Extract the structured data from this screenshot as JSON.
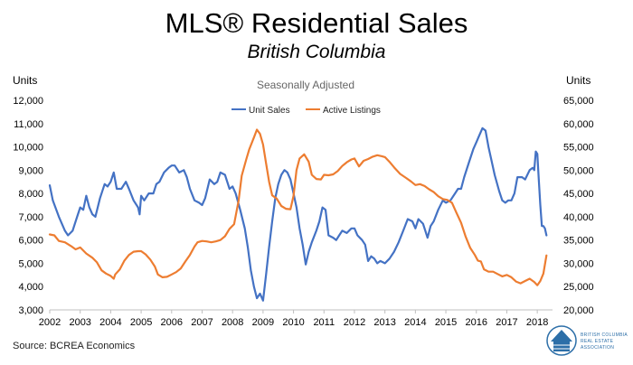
{
  "header": {
    "title": "MLS® Residential Sales",
    "subtitle": "British Columbia"
  },
  "footer": {
    "source": "Source: BCREA Economics"
  },
  "logo": {
    "line1": "BRITISH COLUMBIA",
    "line2": "REAL ESTATE",
    "line3": "ASSOCIATION",
    "color": "#2d6fa8"
  },
  "chart_data": {
    "type": "line",
    "annotation": "Seasonally Adjusted",
    "y_left": {
      "label": "Units",
      "range": [
        3000,
        12000
      ],
      "step": 1000
    },
    "y_right": {
      "label": "Units",
      "range": [
        20000,
        65000
      ],
      "step": 5000
    },
    "x_range": [
      2002,
      2018.5
    ],
    "x_ticks": [
      "2002",
      "2003",
      "2004",
      "2005",
      "2006",
      "2007",
      "2008",
      "2009",
      "2010",
      "2011",
      "2012",
      "2013",
      "2014",
      "2015",
      "2016",
      "2017",
      "2018"
    ],
    "grid": false,
    "legend": "top-center",
    "series": [
      {
        "name": "Unit Sales",
        "axis": "left",
        "color": "#4472c4",
        "points": [
          [
            2002.0,
            8350
          ],
          [
            2002.1,
            7700
          ],
          [
            2002.3,
            7000
          ],
          [
            2002.5,
            6400
          ],
          [
            2002.6,
            6200
          ],
          [
            2002.75,
            6400
          ],
          [
            2002.9,
            7000
          ],
          [
            2003.0,
            7400
          ],
          [
            2003.1,
            7300
          ],
          [
            2003.2,
            7900
          ],
          [
            2003.3,
            7400
          ],
          [
            2003.4,
            7100
          ],
          [
            2003.5,
            7000
          ],
          [
            2003.65,
            7800
          ],
          [
            2003.8,
            8400
          ],
          [
            2003.9,
            8300
          ],
          [
            2004.0,
            8500
          ],
          [
            2004.1,
            8900
          ],
          [
            2004.2,
            8200
          ],
          [
            2004.35,
            8200
          ],
          [
            2004.5,
            8500
          ],
          [
            2004.6,
            8200
          ],
          [
            2004.75,
            7700
          ],
          [
            2004.9,
            7400
          ],
          [
            2004.95,
            7100
          ],
          [
            2005.0,
            7900
          ],
          [
            2005.1,
            7700
          ],
          [
            2005.25,
            8000
          ],
          [
            2005.4,
            8000
          ],
          [
            2005.5,
            8400
          ],
          [
            2005.6,
            8500
          ],
          [
            2005.75,
            8900
          ],
          [
            2005.9,
            9100
          ],
          [
            2006.0,
            9200
          ],
          [
            2006.1,
            9200
          ],
          [
            2006.25,
            8900
          ],
          [
            2006.4,
            9000
          ],
          [
            2006.5,
            8700
          ],
          [
            2006.6,
            8200
          ],
          [
            2006.75,
            7700
          ],
          [
            2006.9,
            7600
          ],
          [
            2007.0,
            7500
          ],
          [
            2007.1,
            7800
          ],
          [
            2007.25,
            8600
          ],
          [
            2007.4,
            8400
          ],
          [
            2007.5,
            8500
          ],
          [
            2007.6,
            8900
          ],
          [
            2007.75,
            8800
          ],
          [
            2007.9,
            8200
          ],
          [
            2008.0,
            8300
          ],
          [
            2008.1,
            8000
          ],
          [
            2008.25,
            7300
          ],
          [
            2008.4,
            6500
          ],
          [
            2008.5,
            5700
          ],
          [
            2008.6,
            4700
          ],
          [
            2008.7,
            4000
          ],
          [
            2008.8,
            3500
          ],
          [
            2008.9,
            3700
          ],
          [
            2009.0,
            3400
          ],
          [
            2009.1,
            4500
          ],
          [
            2009.2,
            5700
          ],
          [
            2009.3,
            6800
          ],
          [
            2009.4,
            7800
          ],
          [
            2009.5,
            8400
          ],
          [
            2009.6,
            8800
          ],
          [
            2009.7,
            9000
          ],
          [
            2009.8,
            8900
          ],
          [
            2009.9,
            8600
          ],
          [
            2010.0,
            8000
          ],
          [
            2010.1,
            7400
          ],
          [
            2010.2,
            6500
          ],
          [
            2010.3,
            5800
          ],
          [
            2010.4,
            4950
          ],
          [
            2010.5,
            5500
          ],
          [
            2010.6,
            5900
          ],
          [
            2010.75,
            6400
          ],
          [
            2010.85,
            6800
          ],
          [
            2010.95,
            7400
          ],
          [
            2011.05,
            7300
          ],
          [
            2011.15,
            6200
          ],
          [
            2011.3,
            6100
          ],
          [
            2011.4,
            6000
          ],
          [
            2011.5,
            6200
          ],
          [
            2011.6,
            6400
          ],
          [
            2011.75,
            6300
          ],
          [
            2011.9,
            6500
          ],
          [
            2012.0,
            6500
          ],
          [
            2012.1,
            6200
          ],
          [
            2012.25,
            6000
          ],
          [
            2012.35,
            5800
          ],
          [
            2012.45,
            5100
          ],
          [
            2012.55,
            5300
          ],
          [
            2012.65,
            5200
          ],
          [
            2012.75,
            5000
          ],
          [
            2012.85,
            5100
          ],
          [
            2013.0,
            5000
          ],
          [
            2013.15,
            5200
          ],
          [
            2013.3,
            5500
          ],
          [
            2013.45,
            5900
          ],
          [
            2013.6,
            6400
          ],
          [
            2013.75,
            6900
          ],
          [
            2013.9,
            6800
          ],
          [
            2014.0,
            6500
          ],
          [
            2014.1,
            6900
          ],
          [
            2014.25,
            6700
          ],
          [
            2014.4,
            6100
          ],
          [
            2014.5,
            6600
          ],
          [
            2014.6,
            6800
          ],
          [
            2014.75,
            7300
          ],
          [
            2014.9,
            7700
          ],
          [
            2015.0,
            7600
          ],
          [
            2015.15,
            7700
          ],
          [
            2015.3,
            8000
          ],
          [
            2015.4,
            8200
          ],
          [
            2015.5,
            8200
          ],
          [
            2015.6,
            8700
          ],
          [
            2015.75,
            9300
          ],
          [
            2015.9,
            9900
          ],
          [
            2016.0,
            10200
          ],
          [
            2016.1,
            10500
          ],
          [
            2016.2,
            10800
          ],
          [
            2016.3,
            10700
          ],
          [
            2016.4,
            10000
          ],
          [
            2016.5,
            9400
          ],
          [
            2016.6,
            8800
          ],
          [
            2016.75,
            8100
          ],
          [
            2016.85,
            7700
          ],
          [
            2016.95,
            7600
          ],
          [
            2017.05,
            7700
          ],
          [
            2017.15,
            7700
          ],
          [
            2017.25,
            8000
          ],
          [
            2017.35,
            8700
          ],
          [
            2017.5,
            8700
          ],
          [
            2017.6,
            8600
          ],
          [
            2017.75,
            9000
          ],
          [
            2017.85,
            9100
          ],
          [
            2017.9,
            9000
          ],
          [
            2017.95,
            9800
          ],
          [
            2018.0,
            9700
          ],
          [
            2018.05,
            8600
          ],
          [
            2018.1,
            7500
          ],
          [
            2018.15,
            6600
          ],
          [
            2018.2,
            6600
          ],
          [
            2018.25,
            6500
          ],
          [
            2018.3,
            6200
          ]
        ]
      },
      {
        "name": "Active Listings",
        "axis": "right",
        "color": "#ed7d31",
        "points": [
          [
            2002.0,
            36200
          ],
          [
            2002.15,
            36000
          ],
          [
            2002.3,
            34800
          ],
          [
            2002.5,
            34500
          ],
          [
            2002.7,
            33700
          ],
          [
            2002.85,
            33000
          ],
          [
            2003.0,
            33400
          ],
          [
            2003.2,
            32100
          ],
          [
            2003.4,
            31200
          ],
          [
            2003.55,
            30200
          ],
          [
            2003.7,
            28500
          ],
          [
            2003.85,
            27800
          ],
          [
            2004.0,
            27300
          ],
          [
            2004.1,
            26700
          ],
          [
            2004.15,
            27600
          ],
          [
            2004.3,
            28700
          ],
          [
            2004.45,
            30600
          ],
          [
            2004.6,
            31800
          ],
          [
            2004.75,
            32500
          ],
          [
            2004.9,
            32600
          ],
          [
            2005.0,
            32600
          ],
          [
            2005.15,
            31900
          ],
          [
            2005.3,
            30800
          ],
          [
            2005.45,
            29300
          ],
          [
            2005.55,
            27600
          ],
          [
            2005.7,
            27000
          ],
          [
            2005.85,
            27100
          ],
          [
            2006.0,
            27600
          ],
          [
            2006.15,
            28100
          ],
          [
            2006.3,
            28900
          ],
          [
            2006.45,
            30400
          ],
          [
            2006.6,
            31800
          ],
          [
            2006.75,
            33600
          ],
          [
            2006.85,
            34500
          ],
          [
            2007.0,
            34800
          ],
          [
            2007.15,
            34700
          ],
          [
            2007.3,
            34500
          ],
          [
            2007.45,
            34700
          ],
          [
            2007.6,
            35000
          ],
          [
            2007.75,
            35800
          ],
          [
            2007.9,
            37400
          ],
          [
            2008.05,
            38400
          ],
          [
            2008.2,
            43500
          ],
          [
            2008.3,
            48800
          ],
          [
            2008.45,
            52300
          ],
          [
            2008.55,
            54500
          ],
          [
            2008.7,
            57000
          ],
          [
            2008.8,
            58700
          ],
          [
            2008.9,
            57800
          ],
          [
            2009.0,
            55500
          ],
          [
            2009.1,
            51500
          ],
          [
            2009.2,
            47500
          ],
          [
            2009.3,
            44600
          ],
          [
            2009.45,
            43900
          ],
          [
            2009.6,
            42300
          ],
          [
            2009.75,
            41700
          ],
          [
            2009.9,
            41600
          ],
          [
            2010.0,
            44500
          ],
          [
            2010.1,
            50000
          ],
          [
            2010.2,
            52500
          ],
          [
            2010.35,
            53400
          ],
          [
            2010.5,
            51800
          ],
          [
            2010.6,
            49000
          ],
          [
            2010.75,
            48100
          ],
          [
            2010.9,
            48000
          ],
          [
            2011.0,
            49000
          ],
          [
            2011.15,
            48900
          ],
          [
            2011.3,
            49100
          ],
          [
            2011.45,
            49800
          ],
          [
            2011.6,
            50900
          ],
          [
            2011.75,
            51700
          ],
          [
            2011.9,
            52300
          ],
          [
            2012.0,
            52500
          ],
          [
            2012.15,
            50800
          ],
          [
            2012.3,
            52000
          ],
          [
            2012.45,
            52400
          ],
          [
            2012.6,
            52900
          ],
          [
            2012.75,
            53200
          ],
          [
            2012.9,
            53000
          ],
          [
            2013.0,
            52800
          ],
          [
            2013.15,
            51800
          ],
          [
            2013.3,
            50600
          ],
          [
            2013.5,
            49200
          ],
          [
            2013.7,
            48300
          ],
          [
            2013.85,
            47600
          ],
          [
            2014.0,
            46800
          ],
          [
            2014.15,
            47000
          ],
          [
            2014.3,
            46600
          ],
          [
            2014.45,
            45900
          ],
          [
            2014.6,
            45300
          ],
          [
            2014.75,
            44400
          ],
          [
            2014.9,
            43800
          ],
          [
            2015.05,
            43600
          ],
          [
            2015.2,
            43000
          ],
          [
            2015.35,
            40800
          ],
          [
            2015.5,
            38700
          ],
          [
            2015.65,
            35700
          ],
          [
            2015.8,
            33300
          ],
          [
            2015.95,
            31800
          ],
          [
            2016.05,
            30600
          ],
          [
            2016.15,
            30400
          ],
          [
            2016.25,
            28700
          ],
          [
            2016.4,
            28200
          ],
          [
            2016.55,
            28200
          ],
          [
            2016.7,
            27700
          ],
          [
            2016.85,
            27200
          ],
          [
            2017.0,
            27500
          ],
          [
            2017.15,
            27000
          ],
          [
            2017.3,
            26100
          ],
          [
            2017.45,
            25700
          ],
          [
            2017.6,
            26200
          ],
          [
            2017.75,
            26700
          ],
          [
            2017.9,
            26000
          ],
          [
            2018.0,
            25300
          ],
          [
            2018.1,
            26200
          ],
          [
            2018.2,
            27800
          ],
          [
            2018.3,
            31700
          ]
        ]
      }
    ]
  }
}
